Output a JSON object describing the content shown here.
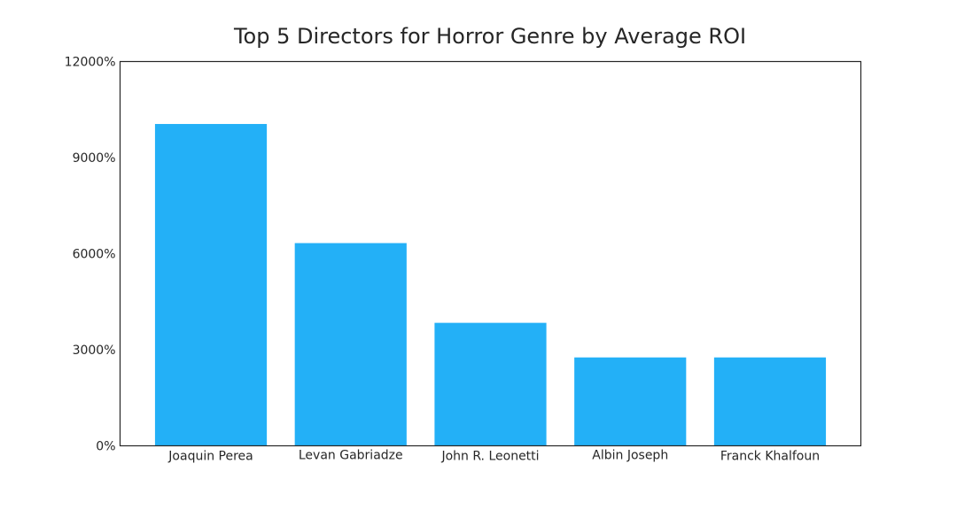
{
  "chart_data": {
    "type": "bar",
    "title": "Top 5 Directors for Horror Genre by Average ROI",
    "xlabel": "",
    "ylabel": "",
    "categories": [
      "Joaquin Perea",
      "Levan Gabriadze",
      "John R. Leonetti",
      "Albin Joseph",
      "Franck Khalfoun"
    ],
    "values": [
      10050,
      6330,
      3840,
      2760,
      2760
    ],
    "ylim": [
      0,
      12000
    ],
    "yticks": [
      0,
      3000,
      6000,
      9000,
      12000
    ],
    "ytick_labels": [
      "0%",
      "3000%",
      "6000%",
      "9000%",
      "12000%"
    ],
    "grid": false,
    "bar_color": "#23b0f7"
  }
}
